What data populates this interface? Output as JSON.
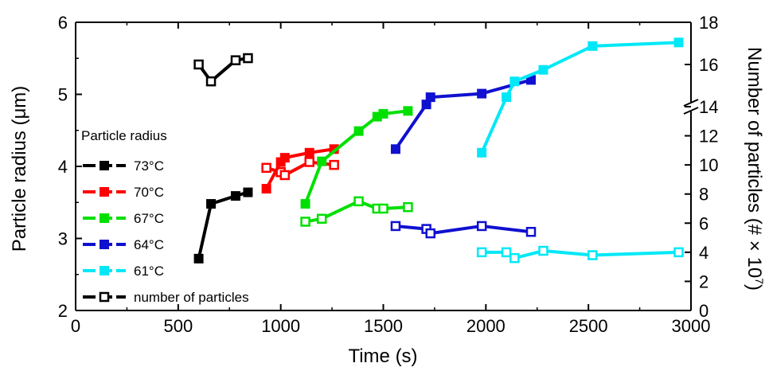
{
  "chart_data": {
    "type": "line",
    "xlabel": "Time (s)",
    "ylabel": "Particle radius (μm)",
    "y2label_main": "Number of particles (# × 10",
    "y2label_exp": "7",
    "y2label_close": ")",
    "xlim": [
      0,
      3000
    ],
    "ylim": [
      2,
      6
    ],
    "y2_lower_range": [
      0,
      14
    ],
    "y2_upper_range": [
      14,
      18
    ],
    "y2_scale_break_at": 14,
    "x_ticks": [
      "0",
      "500",
      "1000",
      "1500",
      "2000",
      "2500",
      "3000"
    ],
    "y_ticks": [
      "2",
      "3",
      "4",
      "5",
      "6"
    ],
    "y2_ticks": [
      "0",
      "2",
      "4",
      "6",
      "8",
      "10",
      "12",
      "14",
      "16",
      "18"
    ],
    "grid": false,
    "legend_position": "lower-left",
    "legend_title": "Particle radius",
    "radius_series": [
      {
        "name": "73°C",
        "color": "#000000",
        "points": [
          [
            600,
            2.72
          ],
          [
            660,
            3.48
          ],
          [
            780,
            3.59
          ],
          [
            840,
            3.64
          ]
        ]
      },
      {
        "name": "70°C",
        "color": "#ff0000",
        "points": [
          [
            930,
            3.69
          ],
          [
            1000,
            4.06
          ],
          [
            1020,
            4.12
          ],
          [
            1140,
            4.19
          ],
          [
            1260,
            4.24
          ]
        ]
      },
      {
        "name": "67°C",
        "color": "#00e000",
        "points": [
          [
            1120,
            3.48
          ],
          [
            1200,
            4.07
          ],
          [
            1380,
            4.49
          ],
          [
            1470,
            4.69
          ],
          [
            1500,
            4.73
          ],
          [
            1620,
            4.77
          ]
        ]
      },
      {
        "name": "64°C",
        "color": "#1010d0",
        "points": [
          [
            1560,
            4.24
          ],
          [
            1710,
            4.86
          ],
          [
            1730,
            4.96
          ],
          [
            1980,
            5.01
          ],
          [
            2220,
            5.2
          ]
        ]
      },
      {
        "name": "61°C",
        "color": "#00e8f8",
        "points": [
          [
            1980,
            4.19
          ],
          [
            2100,
            4.96
          ],
          [
            2140,
            5.18
          ],
          [
            2280,
            5.34
          ],
          [
            2520,
            5.67
          ],
          [
            2940,
            5.72
          ]
        ]
      }
    ],
    "particle_count_series": [
      {
        "name": "number of particles",
        "color": "#000000",
        "points": [
          [
            600,
            16.0
          ],
          [
            660,
            15.2
          ],
          [
            780,
            16.2
          ],
          [
            840,
            16.3
          ]
        ]
      },
      {
        "color": "#ff0000",
        "points": [
          [
            930,
            9.8
          ],
          [
            1000,
            9.5
          ],
          [
            1020,
            9.3
          ],
          [
            1140,
            10.2
          ],
          [
            1260,
            10.0
          ]
        ]
      },
      {
        "color": "#00e000",
        "points": [
          [
            1120,
            6.1
          ],
          [
            1200,
            6.3
          ],
          [
            1380,
            7.5
          ],
          [
            1470,
            7.0
          ],
          [
            1500,
            7.0
          ],
          [
            1620,
            7.1
          ]
        ]
      },
      {
        "color": "#1010d0",
        "points": [
          [
            1560,
            5.8
          ],
          [
            1710,
            5.6
          ],
          [
            1730,
            5.3
          ],
          [
            1980,
            5.8
          ],
          [
            2220,
            5.4
          ]
        ]
      },
      {
        "color": "#00e8f8",
        "points": [
          [
            1980,
            4.0
          ],
          [
            2100,
            4.0
          ],
          [
            2140,
            3.6
          ],
          [
            2280,
            4.1
          ],
          [
            2520,
            3.8
          ],
          [
            2940,
            4.0
          ]
        ]
      }
    ]
  }
}
